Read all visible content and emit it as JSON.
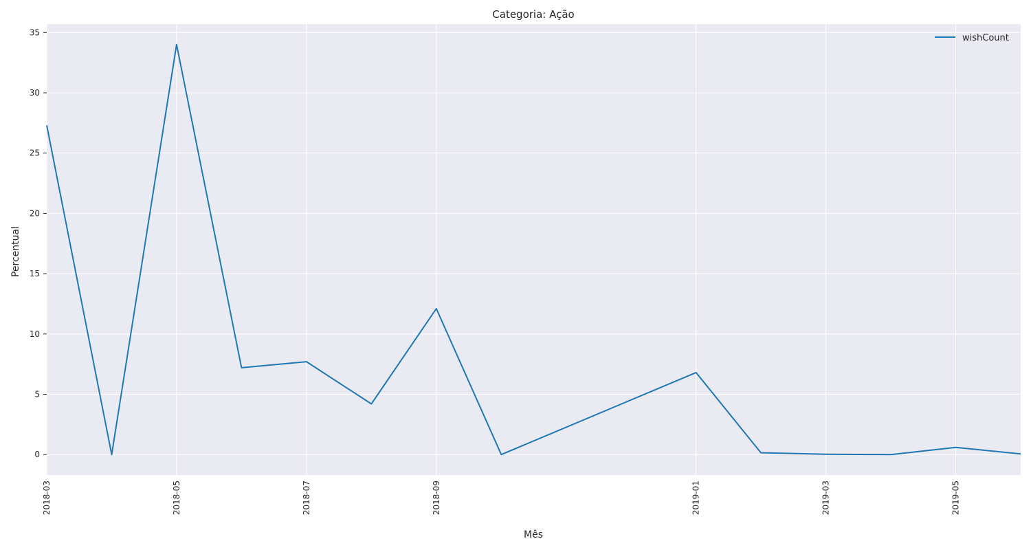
{
  "chart_data": {
    "type": "line",
    "title": "Categoria: Ação",
    "xlabel": "Mês",
    "ylabel": "Percentual",
    "x": [
      "2018-03",
      "2018-04",
      "2018-05",
      "2018-06",
      "2018-07",
      "2018-08",
      "2018-09",
      "2018-10",
      "2018-11",
      "2018-12",
      "2019-01",
      "2019-02",
      "2019-03",
      "2019-04",
      "2019-05",
      "2019-06"
    ],
    "x_tick_labels": [
      "2018-03",
      "2018-05",
      "2018-07",
      "2018-09",
      "2019-01",
      "2019-03",
      "2019-05"
    ],
    "series": [
      {
        "name": "wishCount",
        "color": "#1f77b4",
        "points": [
          {
            "x": "2018-03",
            "y": 27.3
          },
          {
            "x": "2018-04",
            "y": 0.0
          },
          {
            "x": "2018-05",
            "y": 34.0
          },
          {
            "x": "2018-06",
            "y": 7.2
          },
          {
            "x": "2018-07",
            "y": 7.7
          },
          {
            "x": "2018-08",
            "y": 4.2
          },
          {
            "x": "2018-09",
            "y": 12.1
          },
          {
            "x": "2018-10",
            "y": 0.0
          },
          {
            "x": "2019-01",
            "y": 6.8
          },
          {
            "x": "2019-02",
            "y": 0.15
          },
          {
            "x": "2019-03",
            "y": 0.03
          },
          {
            "x": "2019-04",
            "y": 0.0
          },
          {
            "x": "2019-05",
            "y": 0.6
          },
          {
            "x": "2019-06",
            "y": 0.05
          }
        ]
      }
    ],
    "y_ticks": [
      0,
      5,
      10,
      15,
      20,
      25,
      30,
      35
    ],
    "ylim": [
      -1.7,
      35.7
    ],
    "grid": true,
    "legend": "top-right",
    "background": "#eaeaf2"
  }
}
